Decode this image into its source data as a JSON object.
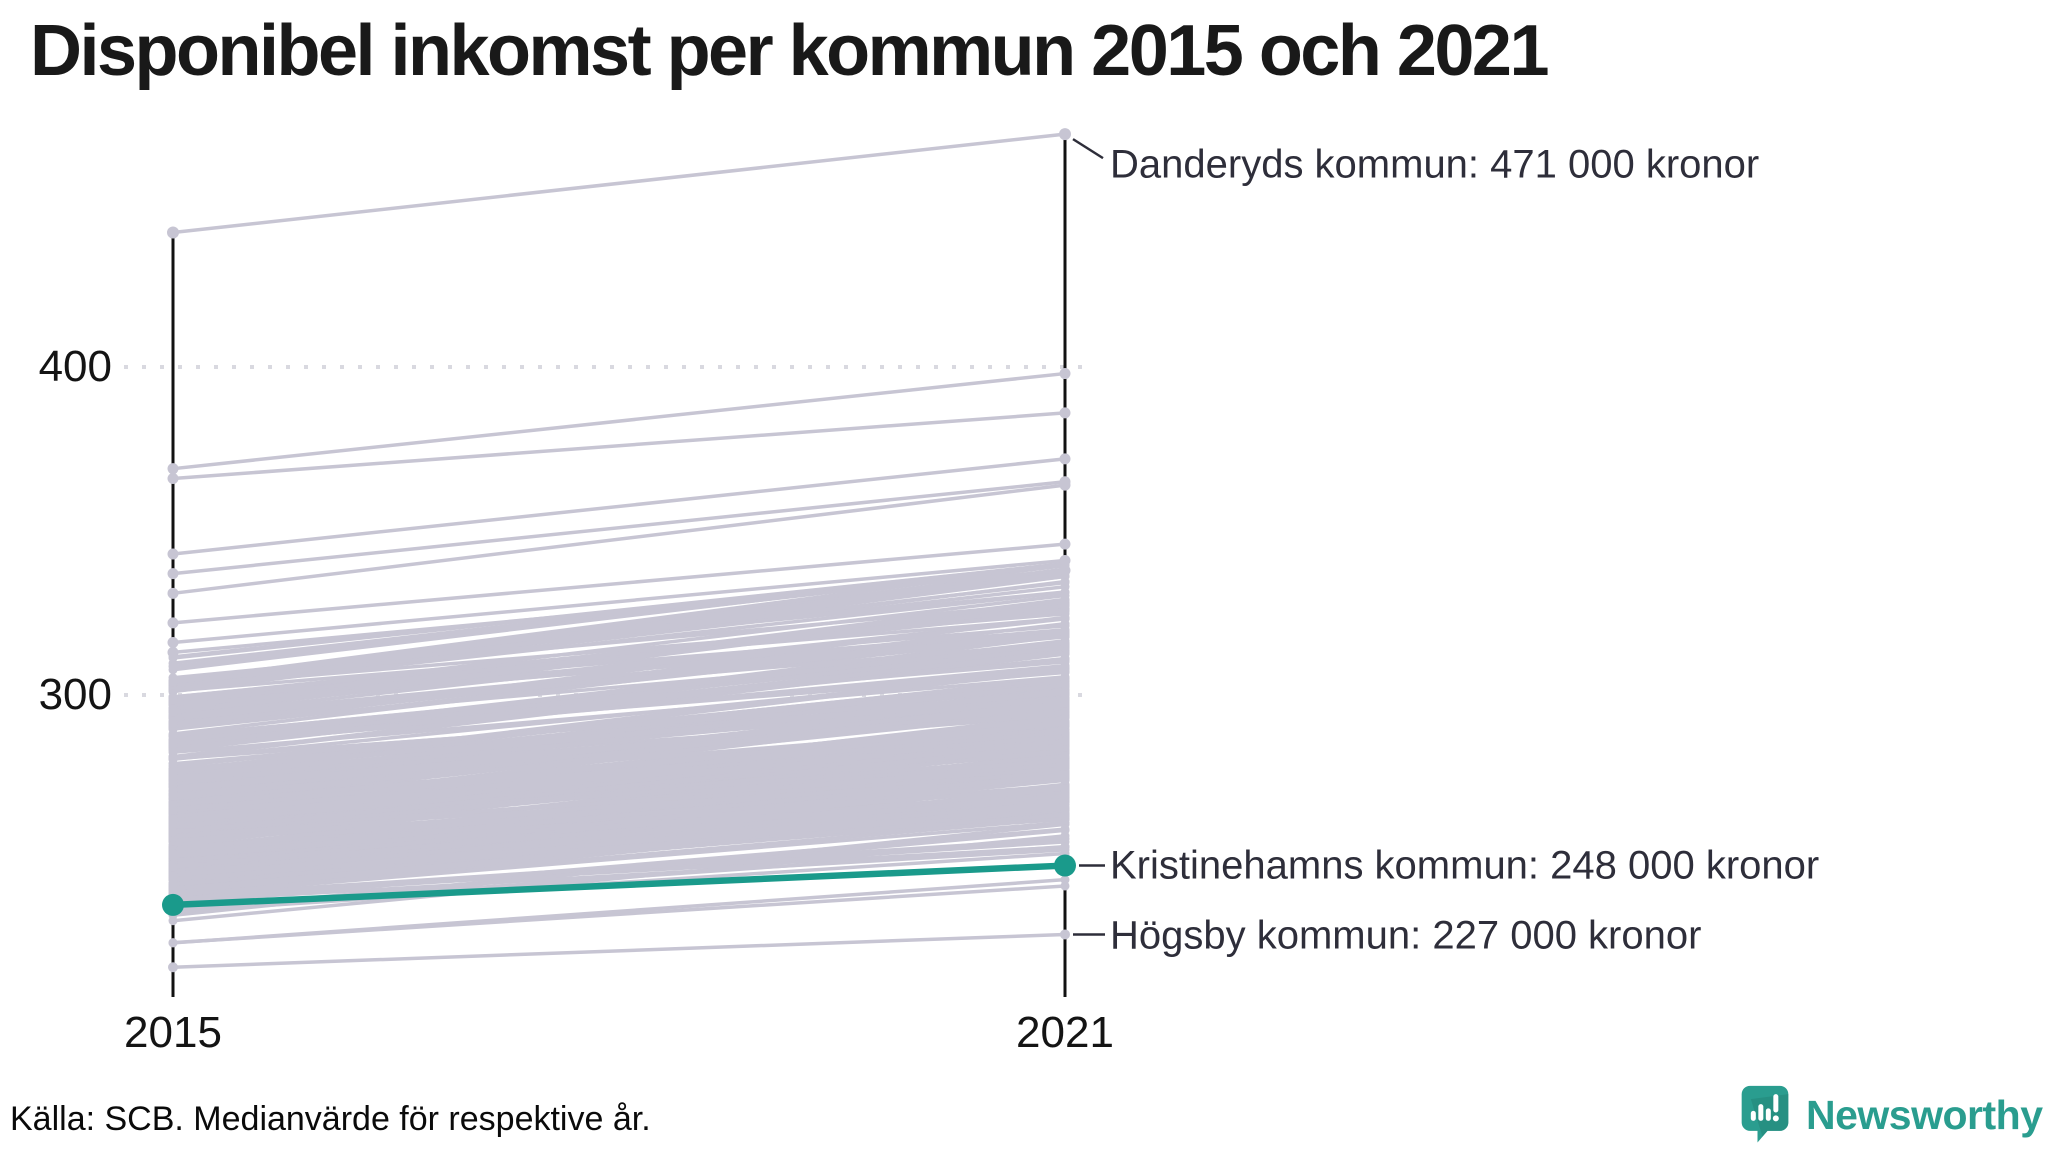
{
  "title": "Disponibel inkomst per kommun 2015 och 2021",
  "axis": {
    "y_ticks": [
      "400",
      "300"
    ],
    "x_labels": [
      "2015",
      "2021"
    ]
  },
  "footer": {
    "source_note": "Källa: SCB. Medianvärde för respektive år."
  },
  "logo": {
    "name": "Newsworthy"
  },
  "colors": {
    "background": "#ffffff",
    "line_gray": "#c7c5d3",
    "highlight_teal": "#1a9a8b",
    "axis_black": "#111111",
    "grid_gray": "#d9d9e0",
    "annotation_text": "#2e2e3a",
    "brand_teal": "#2a9d8f"
  },
  "chart_data": {
    "type": "line",
    "subtype": "slope",
    "title": "Disponibel inkomst per kommun 2015 och 2021",
    "x": [
      2015,
      2021
    ],
    "y_tick_values": [
      400,
      300
    ],
    "gridlines": [
      400,
      300
    ],
    "grid": "dotted-horizontal",
    "ylim": [
      208,
      480
    ],
    "y_unit_label_pattern": "000 kronor",
    "series_labeled": [
      {
        "name": "Danderyds kommun",
        "values": [
          441,
          471
        ],
        "label": "Danderyds kommun: 471 000 kronor",
        "highlight": false
      },
      {
        "name": "Kristinehamns kommun",
        "values": [
          236,
          248
        ],
        "label": "Kristinehamns kommun: 248 000 kronor",
        "highlight": true
      },
      {
        "name": "Högsby kommun",
        "values": [
          217,
          227
        ],
        "label": "Högsby kommun: 227 000 kronor",
        "highlight": false
      }
    ],
    "other_visible_lines": [
      [
        369,
        398
      ],
      [
        366,
        386
      ],
      [
        343,
        372
      ],
      [
        337,
        365
      ],
      [
        331,
        364
      ],
      [
        322,
        346
      ],
      [
        316,
        341
      ],
      [
        313,
        338
      ]
    ],
    "background_band": {
      "count": 278,
      "left_range": [
        219,
        312
      ],
      "right_range": [
        230,
        340
      ],
      "seed": 42
    },
    "legend_position": "none"
  }
}
